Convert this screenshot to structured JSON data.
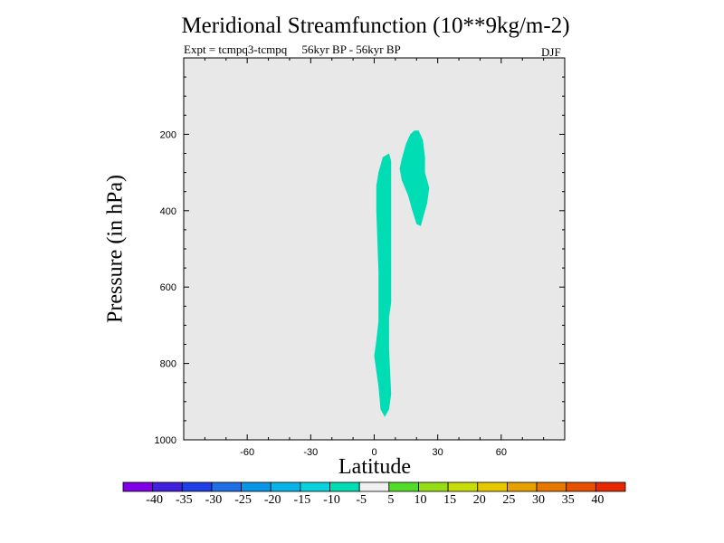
{
  "chart_data": {
    "type": "heatmap",
    "title": "Meridional Streamfunction (10**9kg/m-2)",
    "subtitle": "Expt = tcmpq3-tcmpq     56kyr BP - 56kyr BP",
    "season": "DJF",
    "xlabel": "Latitude",
    "ylabel": "Pressure (in hPa)",
    "xlim": [
      -90,
      90
    ],
    "ylim": [
      1000,
      0
    ],
    "x_ticks": [
      -60,
      -30,
      0,
      30,
      60
    ],
    "y_ticks": [
      200,
      400,
      600,
      800,
      1000
    ],
    "background_color": "#e8e8e8",
    "contour_regions": [
      {
        "level": "-10 to -5",
        "color": "#00dcb4",
        "polygon_lat_pressure": [
          [
            1,
            335
          ],
          [
            2,
            300
          ],
          [
            4,
            260
          ],
          [
            7,
            250
          ],
          [
            8,
            270
          ],
          [
            8,
            550
          ],
          [
            8,
            640
          ],
          [
            7,
            680
          ],
          [
            7,
            760
          ],
          [
            8,
            880
          ],
          [
            7,
            920
          ],
          [
            5,
            940
          ],
          [
            3,
            920
          ],
          [
            2,
            860
          ],
          [
            1,
            820
          ],
          [
            0,
            780
          ],
          [
            1,
            740
          ],
          [
            2,
            690
          ],
          [
            2,
            560
          ],
          [
            1,
            400
          ]
        ]
      },
      {
        "level": "-10 to -5",
        "color": "#00dcb4",
        "polygon_lat_pressure": [
          [
            13,
            265
          ],
          [
            15,
            225
          ],
          [
            17,
            200
          ],
          [
            19,
            190
          ],
          [
            21,
            190
          ],
          [
            23,
            215
          ],
          [
            24,
            260
          ],
          [
            24,
            300
          ],
          [
            26,
            340
          ],
          [
            25,
            380
          ],
          [
            23,
            420
          ],
          [
            22,
            440
          ],
          [
            20,
            435
          ],
          [
            18,
            400
          ],
          [
            16,
            360
          ],
          [
            13,
            320
          ],
          [
            12,
            290
          ]
        ]
      }
    ],
    "colorbar": {
      "labels": [
        "-40",
        "-35",
        "-30",
        "-25",
        "-20",
        "-15",
        "-10",
        "-5",
        "5",
        "10",
        "15",
        "20",
        "25",
        "30",
        "35",
        "40"
      ],
      "colors": [
        "#7f00e6",
        "#4020dc",
        "#1e3ee6",
        "#1e6ee6",
        "#0a96e6",
        "#08b4e6",
        "#0ad2dc",
        "#00dcb4",
        "#f0f0f0",
        "#50dc28",
        "#96dc14",
        "#c8dc0a",
        "#e6c800",
        "#e6a000",
        "#e67800",
        "#e65000",
        "#e62800"
      ]
    }
  }
}
